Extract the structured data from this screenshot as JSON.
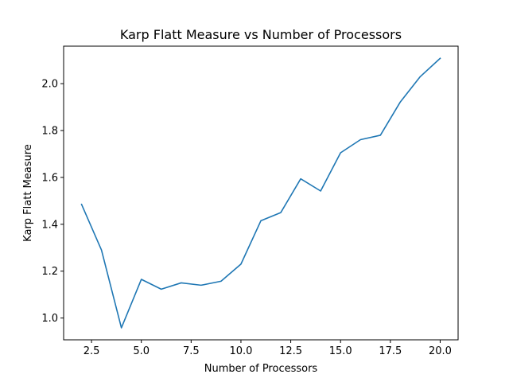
{
  "chart_data": {
    "type": "line",
    "title": "Karp Flatt Measure vs Number of Processors",
    "xlabel": "Number of Processors",
    "ylabel": "Karp Flatt Measure",
    "x": [
      2,
      3,
      4,
      5,
      6,
      7,
      8,
      9,
      10,
      11,
      12,
      13,
      14,
      15,
      16,
      17,
      18,
      19,
      20
    ],
    "series": [
      {
        "values": [
          1.485,
          1.29,
          0.958,
          1.165,
          1.123,
          1.15,
          1.14,
          1.157,
          1.23,
          1.415,
          1.45,
          1.594,
          1.542,
          1.705,
          1.761,
          1.78,
          1.922,
          2.03,
          2.108
        ],
        "color": "#1f77b4"
      }
    ],
    "xlim": [
      1.1,
      20.9
    ],
    "ylim": [
      0.907,
      2.16
    ],
    "xticks": [
      2.5,
      5.0,
      7.5,
      10.0,
      12.5,
      15.0,
      17.5,
      20.0
    ],
    "xtick_labels": [
      "2.5",
      "5.0",
      "7.5",
      "10.0",
      "12.5",
      "15.0",
      "17.5",
      "20.0"
    ],
    "yticks": [
      1.0,
      1.2,
      1.4,
      1.6,
      1.8,
      2.0
    ],
    "ytick_labels": [
      "1.0",
      "1.2",
      "1.4",
      "1.6",
      "1.8",
      "2.0"
    ],
    "grid": false,
    "legend": "none"
  }
}
